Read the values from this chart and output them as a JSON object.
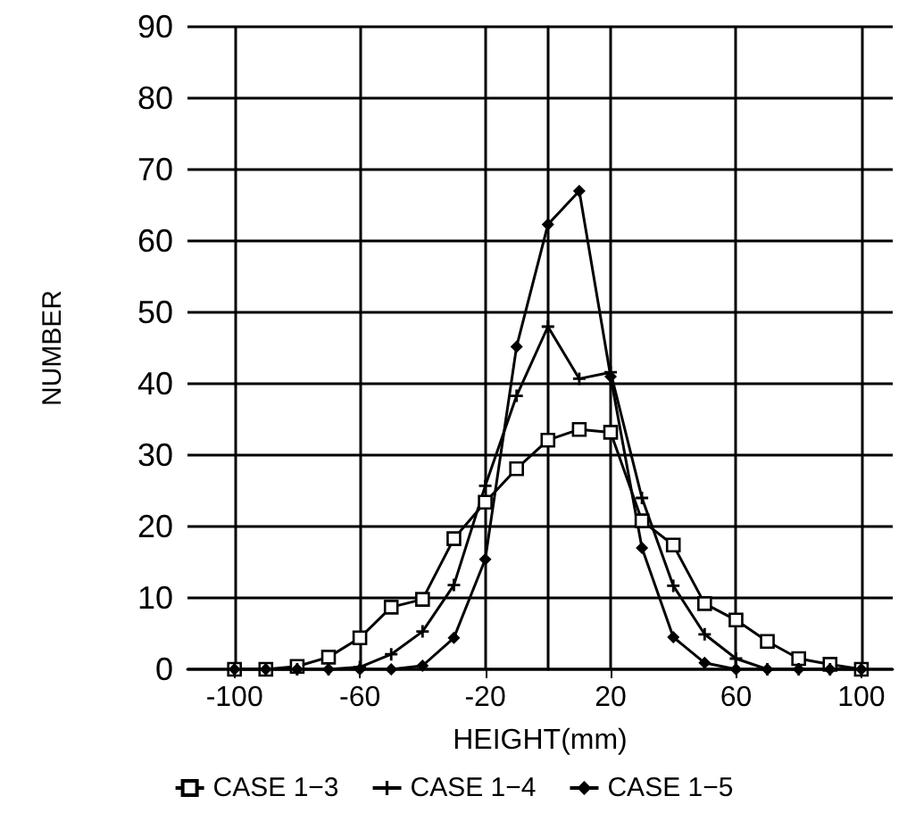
{
  "chart_data": {
    "type": "line",
    "xlabel": "HEIGHT(mm)",
    "ylabel": "NUMBER",
    "x": [
      -100,
      -90,
      -80,
      -70,
      -60,
      -50,
      -40,
      -30,
      -20,
      -10,
      0,
      10,
      20,
      30,
      40,
      50,
      60,
      70,
      80,
      90,
      100
    ],
    "series": [
      {
        "name": "CASE 1−3",
        "color": "#000000",
        "marker": "square",
        "values": [
          0,
          0,
          0.4,
          1.7,
          4.4,
          8.7,
          9.8,
          18.3,
          23.4,
          28.1,
          32.1,
          33.6,
          33.2,
          20.8,
          17.4,
          9.2,
          6.9,
          3.9,
          1.5,
          0.7,
          0
        ]
      },
      {
        "name": "CASE 1−4",
        "color": "#000000",
        "marker": "cross",
        "values": [
          0,
          0,
          0,
          0,
          0.3,
          2.1,
          5.3,
          11.8,
          25.7,
          38.3,
          48,
          40.7,
          41.6,
          24,
          11.7,
          4.9,
          1.5,
          0,
          0,
          0,
          0
        ]
      },
      {
        "name": "CASE 1−5",
        "color": "#000000",
        "marker": "diamond",
        "values": [
          0,
          0,
          0,
          0,
          0,
          0,
          0.5,
          4.4,
          15.4,
          45.2,
          62.3,
          67,
          41,
          17,
          4.5,
          0.9,
          0,
          0,
          0,
          0,
          0
        ]
      }
    ],
    "xlim": [
      -115,
      110
    ],
    "xticks": [
      -100,
      -60,
      -20,
      20,
      60,
      100
    ],
    "ylim": [
      0,
      90
    ],
    "yticks": [
      0,
      10,
      20,
      30,
      40,
      50,
      60,
      70,
      80,
      90
    ],
    "grid": true,
    "legend": "bottom",
    "line_style": "solid"
  }
}
